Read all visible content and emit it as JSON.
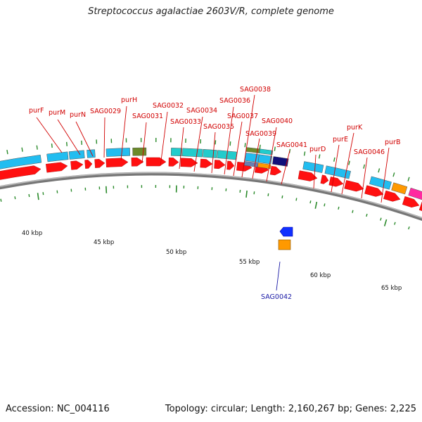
{
  "title": "Streptococcus agalactiae 2603V/R, complete genome",
  "footer": {
    "accession": "Accession: NC_004116",
    "summary": "Topology: circular; Length: 2,160,267 bp; Genes: 2,225"
  },
  "scale_labels": [
    "40 kbp",
    "45 kbp",
    "50 kbp",
    "55 kbp",
    "60 kbp",
    "65 kbp"
  ],
  "gene_labels": [
    "purF",
    "purM",
    "purN",
    "SAG0029",
    "purH",
    "SAG0031",
    "SAG0032",
    "SAG0033",
    "SAG0034",
    "SAG0035",
    "SAG0036",
    "SAG0037",
    "SAG0038",
    "SAG0039",
    "SAG0040",
    "SAG0041",
    "purD",
    "purE",
    "purK",
    "SAG0046",
    "purB",
    "SAG0042"
  ],
  "colors": {
    "cds_red": "#ff1010",
    "gene_cyan": "#22bdf0",
    "teal": "#22cccc",
    "olive": "#6b8a2a",
    "orange": "#ff9900",
    "navy": "#10107a",
    "blue": "#1030ff",
    "magenta": "#ff2aa0",
    "backbone": "#888888",
    "tick_green": "#2a8a2a",
    "label_red": "#d10000",
    "label_blue": "#1a1aa6"
  }
}
